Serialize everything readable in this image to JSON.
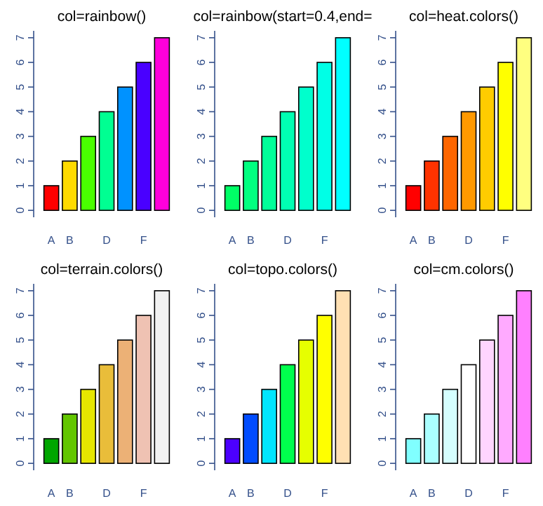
{
  "chart_data": [
    {
      "type": "bar",
      "title": "col=rainbow()",
      "categories": [
        "A",
        "B",
        null,
        "D",
        null,
        "F",
        null
      ],
      "values": [
        1,
        2,
        3,
        4,
        5,
        6,
        7
      ],
      "colors": [
        "#ff0000",
        "#ffdb00",
        "#49ff00",
        "#00ff92",
        "#0092ff",
        "#4900ff",
        "#ff00db"
      ],
      "ylim": [
        -0.28,
        7.28
      ],
      "yticks": [
        0,
        1,
        2,
        3,
        4,
        5,
        6,
        7
      ]
    },
    {
      "type": "bar",
      "title": "col=rainbow(start=0.4,end=",
      "categories": [
        "A",
        "B",
        null,
        "D",
        null,
        "F",
        null
      ],
      "values": [
        1,
        2,
        3,
        4,
        5,
        6,
        7
      ],
      "colors": [
        "#00ff66",
        "#00ff80",
        "#00ff99",
        "#00ffb3",
        "#00ffcc",
        "#00ffe6",
        "#00ffff"
      ],
      "ylim": [
        -0.28,
        7.28
      ],
      "yticks": [
        0,
        1,
        2,
        3,
        4,
        5,
        6,
        7
      ]
    },
    {
      "type": "bar",
      "title": "col=heat.colors()",
      "categories": [
        "A",
        "B",
        null,
        "D",
        null,
        "F",
        null
      ],
      "values": [
        1,
        2,
        3,
        4,
        5,
        6,
        7
      ],
      "colors": [
        "#ff0000",
        "#ff3300",
        "#ff6600",
        "#ff9900",
        "#ffcc00",
        "#ffff00",
        "#ffff80"
      ],
      "ylim": [
        -0.28,
        7.28
      ],
      "yticks": [
        0,
        1,
        2,
        3,
        4,
        5,
        6,
        7
      ]
    },
    {
      "type": "bar",
      "title": "col=terrain.colors()",
      "categories": [
        "A",
        "B",
        null,
        "D",
        null,
        "F",
        null
      ],
      "values": [
        1,
        2,
        3,
        4,
        5,
        6,
        7
      ],
      "colors": [
        "#00a600",
        "#63c600",
        "#e6e600",
        "#e9bd3a",
        "#ecb176",
        "#efc2b3",
        "#f2f2f2"
      ],
      "ylim": [
        -0.28,
        7.28
      ],
      "yticks": [
        0,
        1,
        2,
        3,
        4,
        5,
        6,
        7
      ]
    },
    {
      "type": "bar",
      "title": "col=topo.colors()",
      "categories": [
        "A",
        "B",
        null,
        "D",
        null,
        "F",
        null
      ],
      "values": [
        1,
        2,
        3,
        4,
        5,
        6,
        7
      ],
      "colors": [
        "#4c00ff",
        "#004cff",
        "#00e5ff",
        "#00ff4d",
        "#e6ff00",
        "#ffff00",
        "#ffe0b3"
      ],
      "ylim": [
        -0.28,
        7.28
      ],
      "yticks": [
        0,
        1,
        2,
        3,
        4,
        5,
        6,
        7
      ]
    },
    {
      "type": "bar",
      "title": "col=cm.colors()",
      "categories": [
        "A",
        "B",
        null,
        "D",
        null,
        "F",
        null
      ],
      "values": [
        1,
        2,
        3,
        4,
        5,
        6,
        7
      ],
      "colors": [
        "#80ffff",
        "#aaffff",
        "#d5ffff",
        "#ffffff",
        "#ffd5ff",
        "#ffaaff",
        "#ff80ff"
      ],
      "ylim": [
        -0.28,
        7.28
      ],
      "yticks": [
        0,
        1,
        2,
        3,
        4,
        5,
        6,
        7
      ]
    }
  ]
}
